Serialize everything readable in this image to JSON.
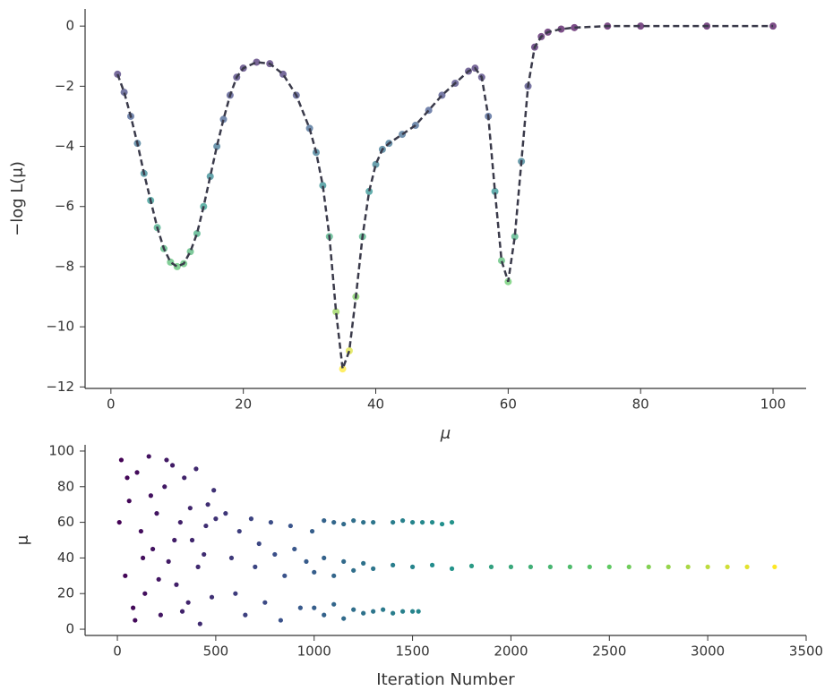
{
  "chart_data": [
    {
      "type": "line",
      "xlabel": "μ",
      "ylabel": "−log L(μ)",
      "colormap": "viridis",
      "line_color": "#3a3a4a",
      "x": [
        1,
        2,
        3,
        4,
        5,
        6,
        7,
        8,
        9,
        10,
        11,
        12,
        13,
        14,
        15,
        16,
        17,
        18,
        19,
        20,
        22,
        24,
        26,
        28,
        30,
        31,
        32,
        33,
        34,
        35,
        36,
        37,
        38,
        39,
        40,
        41,
        42,
        44,
        46,
        48,
        50,
        52,
        54,
        55,
        56,
        57,
        58,
        59,
        60,
        61,
        62,
        63,
        64,
        65,
        66,
        68,
        70,
        75,
        80,
        90,
        100
      ],
      "values": [
        -1.6,
        -2.2,
        -3.0,
        -3.9,
        -4.9,
        -5.8,
        -6.7,
        -7.4,
        -7.85,
        -8.0,
        -7.9,
        -7.5,
        -6.9,
        -6.0,
        -5.0,
        -4.0,
        -3.1,
        -2.3,
        -1.7,
        -1.4,
        -1.2,
        -1.25,
        -1.6,
        -2.3,
        -3.4,
        -4.2,
        -5.3,
        -7.0,
        -9.5,
        -11.4,
        -10.8,
        -9.0,
        -7.0,
        -5.5,
        -4.6,
        -4.1,
        -3.9,
        -3.6,
        -3.3,
        -2.8,
        -2.3,
        -1.9,
        -1.5,
        -1.4,
        -1.7,
        -3.0,
        -5.5,
        -7.8,
        -8.5,
        -7.0,
        -4.5,
        -2.0,
        -0.7,
        -0.35,
        -0.2,
        -0.1,
        -0.05,
        0,
        0,
        0,
        0
      ],
      "xlim": [
        -3.9,
        105
      ],
      "ylim": [
        -12.05,
        0.57
      ],
      "xticks": [
        0,
        20,
        40,
        60,
        80,
        100
      ],
      "yticks": [
        {
          "value": -12,
          "label": "−12"
        },
        {
          "value": -10,
          "label": "−10"
        },
        {
          "value": -8,
          "label": "−8"
        },
        {
          "value": -6,
          "label": "−6"
        },
        {
          "value": -4,
          "label": "−4"
        },
        {
          "value": -2,
          "label": "−2"
        },
        0
      ]
    },
    {
      "type": "scatter",
      "xlabel": "Iteration Number",
      "ylabel": "μ",
      "colormap": "viridis",
      "x": [
        20,
        40,
        60,
        80,
        100,
        120,
        140,
        160,
        180,
        200,
        220,
        240,
        260,
        280,
        300,
        320,
        340,
        360,
        380,
        400,
        420,
        440,
        460,
        480,
        500,
        10,
        50,
        90,
        130,
        170,
        210,
        250,
        290,
        330,
        370,
        410,
        450,
        490,
        550,
        580,
        600,
        620,
        650,
        680,
        700,
        720,
        750,
        780,
        800,
        830,
        850,
        880,
        900,
        930,
        960,
        990,
        1050,
        1100,
        1150,
        1200,
        1250,
        1300,
        1400,
        1450,
        1500,
        1550,
        1600,
        1650,
        1700,
        1000,
        1050,
        1100,
        1150,
        1200,
        1250,
        1300,
        1350,
        1400,
        1450,
        1500,
        1530,
        1000,
        1050,
        1100,
        1150,
        1200,
        1250,
        1300,
        1400,
        1500,
        1600,
        1700,
        1800,
        1900,
        2000,
        2100,
        2200,
        2300,
        2400,
        2500,
        2600,
        2700,
        2800,
        2900,
        3000,
        3100,
        3200,
        3340
      ],
      "values": [
        95,
        30,
        72,
        12,
        88,
        55,
        20,
        97,
        45,
        65,
        8,
        80,
        38,
        92,
        25,
        60,
        85,
        15,
        50,
        90,
        3,
        42,
        70,
        18,
        62,
        60,
        85,
        5,
        40,
        75,
        28,
        95,
        50,
        10,
        68,
        35,
        58,
        78,
        65,
        40,
        20,
        55,
        8,
        62,
        35,
        48,
        15,
        60,
        42,
        5,
        30,
        58,
        45,
        12,
        38,
        55,
        61,
        60,
        59,
        61,
        60,
        60,
        60,
        61,
        60,
        60,
        60,
        59,
        60,
        12,
        8,
        14,
        6,
        11,
        9,
        10,
        11,
        9,
        10,
        10,
        10,
        32,
        40,
        30,
        38,
        33,
        37,
        34,
        36,
        35,
        36,
        34,
        35.5,
        35,
        35,
        35,
        35,
        35,
        35,
        35,
        35,
        35,
        35,
        35,
        35,
        35,
        35,
        35
      ],
      "xlim": [
        -164,
        3500
      ],
      "ylim": [
        -3.5,
        103.5
      ],
      "xticks": [
        0,
        500,
        1000,
        1500,
        2000,
        2500,
        3000,
        3500
      ],
      "yticks": [
        0,
        20,
        40,
        60,
        80,
        100
      ]
    }
  ]
}
